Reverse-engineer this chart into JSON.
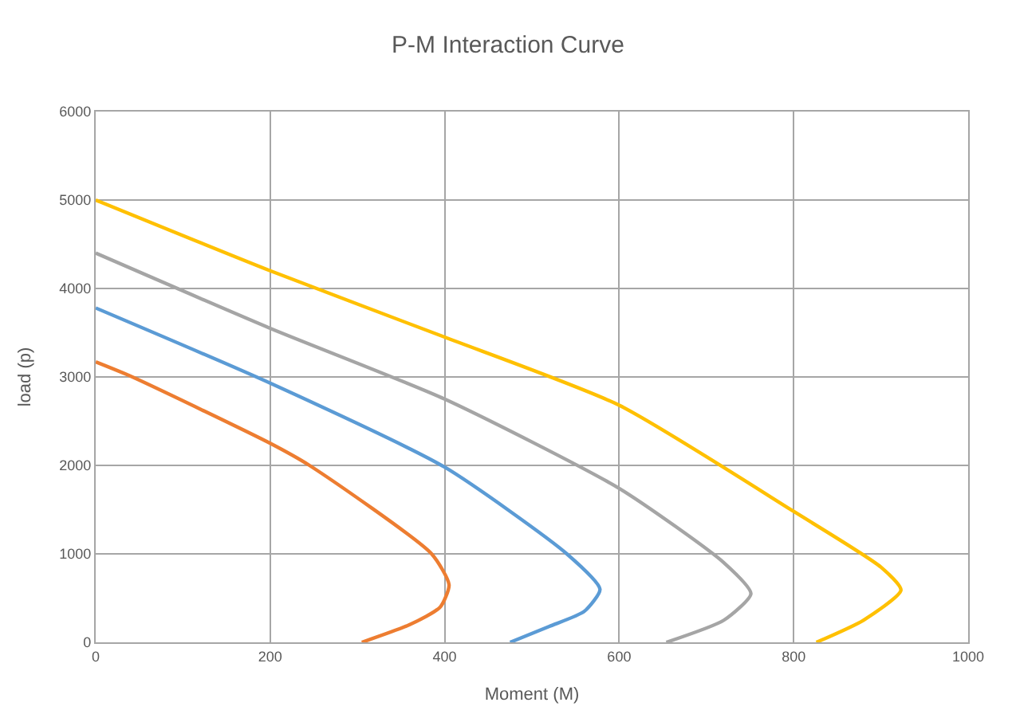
{
  "chart_data": {
    "type": "line",
    "title": "P-M Interaction Curve",
    "xlabel": "Moment (M)",
    "ylabel": "load (p)",
    "xlim": [
      0,
      1000
    ],
    "xticks": [
      0,
      200,
      400,
      600,
      800,
      1000
    ],
    "ylim": [
      0,
      6000
    ],
    "yticks": [
      0,
      1000,
      2000,
      3000,
      4000,
      5000,
      6000
    ],
    "grid": true,
    "marker": "none",
    "line_style": "solid",
    "series": [
      {
        "color": "#ed7d31",
        "x": [
          0,
          42,
          200,
          245,
          385,
          405,
          395,
          360,
          305
        ],
        "values": [
          3170,
          3000,
          2250,
          2000,
          1000,
          650,
          400,
          200,
          0
        ]
      },
      {
        "color": "#5b9bd5",
        "x": [
          0,
          200,
          400,
          540,
          578,
          560,
          520,
          475
        ],
        "values": [
          3780,
          2930,
          1980,
          1000,
          600,
          350,
          180,
          0
        ]
      },
      {
        "color": "#a5a5a5",
        "x": [
          0,
          200,
          400,
          600,
          720,
          751,
          720,
          654
        ],
        "values": [
          4400,
          3550,
          2750,
          1740,
          900,
          550,
          250,
          0
        ]
      },
      {
        "color": "#ffc000",
        "x": [
          0,
          200,
          400,
          600,
          800,
          900,
          923,
          880,
          826
        ],
        "values": [
          5000,
          4200,
          3450,
          2680,
          1480,
          850,
          590,
          250,
          0
        ]
      }
    ]
  }
}
